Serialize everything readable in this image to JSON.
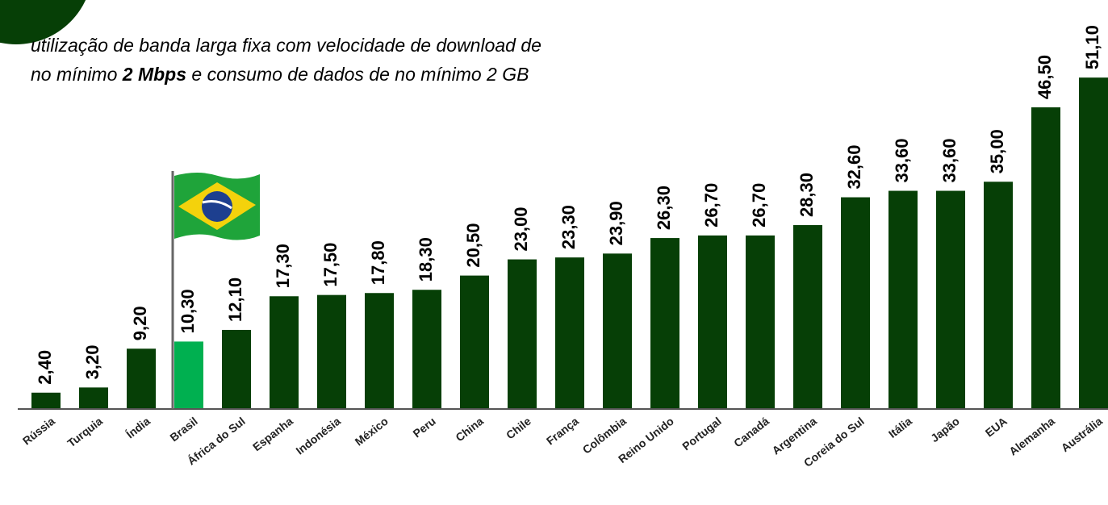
{
  "chart_data": {
    "type": "bar",
    "subtitle": [
      "utilização de banda larga fixa com velocidade de download de",
      "no mínimo ",
      "2 Mbps",
      " e consumo de dados de no mínimo 2 GB"
    ],
    "categories": [
      "Rússia",
      "Turquia",
      "Índia",
      "Brasil",
      "África do Sul",
      "Espanha",
      "Indonésia",
      "México",
      "Peru",
      "China",
      "Chile",
      "França",
      "Colômbia",
      "Reino Unido",
      "Portugal",
      "Canadá",
      "Argentina",
      "Coreia do Sul",
      "Itália",
      "Japão",
      "EUA",
      "Alemanha",
      "Austrália"
    ],
    "values": [
      2.4,
      3.2,
      9.2,
      10.3,
      12.1,
      17.3,
      17.5,
      17.8,
      18.3,
      20.5,
      23.0,
      23.3,
      23.9,
      26.3,
      26.7,
      26.7,
      28.3,
      32.6,
      33.6,
      33.6,
      35.0,
      46.5,
      51.1
    ],
    "value_labels": [
      "2,40",
      "3,20",
      "9,20",
      "10,30",
      "12,10",
      "17,30",
      "17,50",
      "17,80",
      "18,30",
      "20,50",
      "23,00",
      "23,30",
      "23,90",
      "26,30",
      "26,70",
      "26,70",
      "28,30",
      "32,60",
      "33,60",
      "33,60",
      "35,00",
      "46,50",
      "51,10"
    ],
    "colors": [
      "#063f06",
      "#063f06",
      "#063f06",
      "#00b050",
      "#063f06",
      "#063f06",
      "#063f06",
      "#063f06",
      "#063f06",
      "#063f06",
      "#063f06",
      "#063f06",
      "#063f06",
      "#063f06",
      "#063f06",
      "#063f06",
      "#063f06",
      "#063f06",
      "#063f06",
      "#063f06",
      "#063f06",
      "#063f06",
      "#063f06"
    ]
  }
}
